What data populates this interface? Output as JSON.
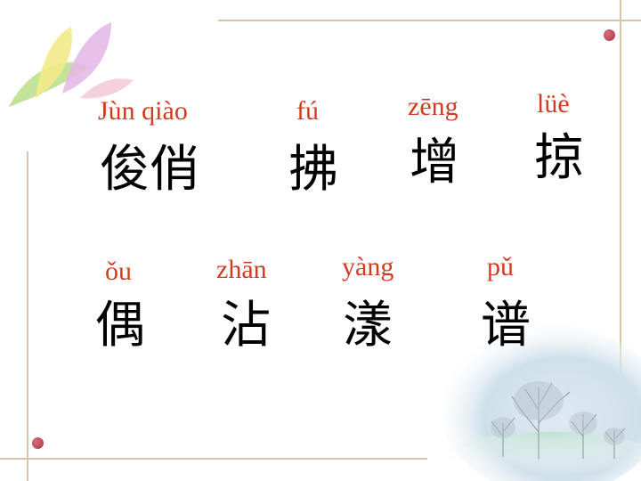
{
  "rows": [
    {
      "items": [
        {
          "pinyin": "Jùn qiào",
          "hanzi": "俊俏"
        },
        {
          "pinyin": "fú",
          "hanzi": "拂"
        },
        {
          "pinyin": "zēng",
          "hanzi": "增"
        },
        {
          "pinyin": "lüè",
          "hanzi": "掠"
        }
      ]
    },
    {
      "items": [
        {
          "pinyin": "ǒu",
          "hanzi": "偶"
        },
        {
          "pinyin": "zhān",
          "hanzi": "沾"
        },
        {
          "pinyin": "yàng",
          "hanzi": "漾"
        },
        {
          "pinyin": "pǔ",
          "hanzi": "谱"
        }
      ]
    }
  ],
  "colors": {
    "pinyin": "#d33a1f",
    "hanzi": "#000000",
    "frame": "#d9c6a8",
    "dot": "#b84457"
  },
  "decorations": [
    "flower-logo",
    "winter-trees-image"
  ]
}
